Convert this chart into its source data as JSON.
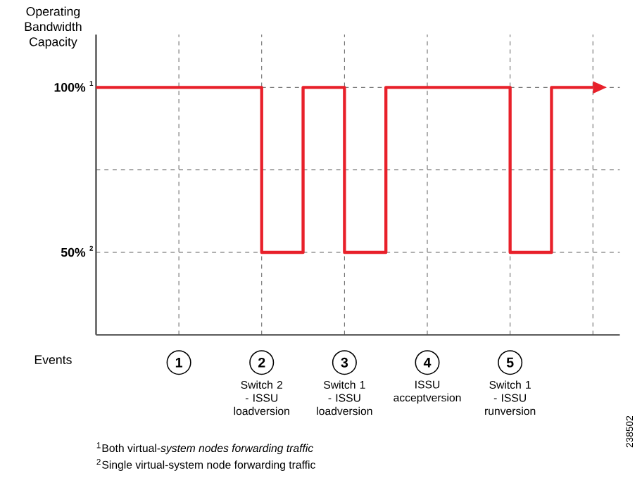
{
  "chart_data": {
    "type": "step",
    "ylabel": "Operating Bandwidth Capacity",
    "xlabel": "Events",
    "categories": [
      null,
      null,
      "1",
      null,
      "2",
      null,
      "3",
      null,
      "4",
      null,
      "5",
      null,
      null
    ],
    "series": [
      {
        "color": "#e8202a",
        "values": [
          100,
          100,
          100,
          100,
          100,
          50,
          100,
          50,
          100,
          100,
          100,
          50,
          100
        ]
      }
    ],
    "ylim": [
      25,
      116
    ],
    "yticks": [
      {
        "value": 50,
        "label": "50%"
      },
      {
        "value": 75,
        "label": null
      },
      {
        "value": 100,
        "label": "100%"
      }
    ],
    "grid": true,
    "marker": "none",
    "line_style": "solid",
    "annotations": [
      "Switch 2 - ISSU loadversion",
      "Switch 1 - ISSU loadversion",
      "ISSU acceptversion",
      "Switch 1 - ISSU runversion",
      "2",
      "1",
      "$^{1}$Both virtual-*system nodes forwarding traffic*",
      "$^{2}$Single virtual-system node forwarding traffic",
      "238502"
    ]
  }
}
